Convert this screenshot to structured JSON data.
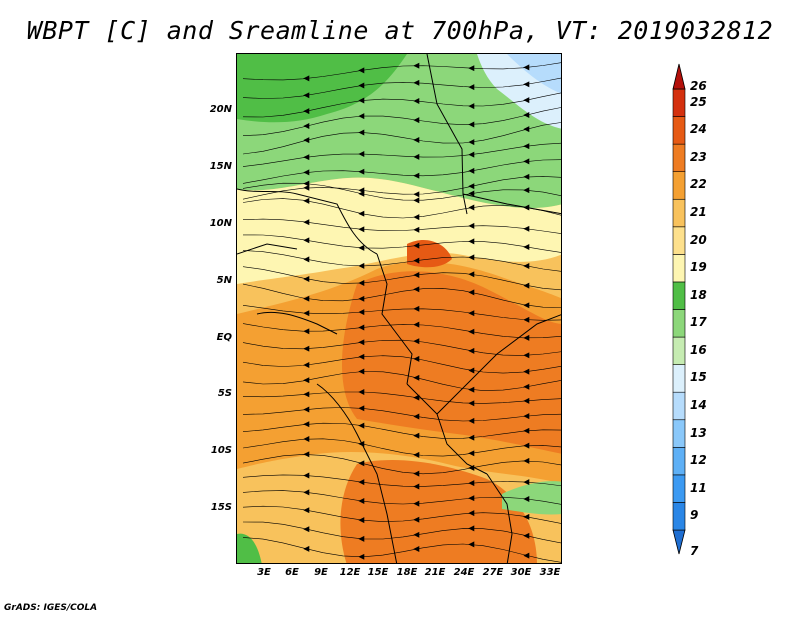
{
  "title": "WBPT [C] and Sreamline at 700hPa, VT: 2019032812",
  "footer": "GrADS: IGES/COLA",
  "map": {
    "lat_labels": [
      "20N",
      "15N",
      "10N",
      "5N",
      "EQ",
      "5S",
      "10S",
      "15S"
    ],
    "lon_labels": [
      "3E",
      "6E",
      "9E",
      "12E",
      "15E",
      "18E",
      "21E",
      "24E",
      "27E",
      "30E",
      "33E"
    ]
  },
  "colorbar": {
    "labels": [
      "7",
      "9",
      "11",
      "12",
      "13",
      "14",
      "15",
      "16",
      "17",
      "18",
      "19",
      "20",
      "21",
      "22",
      "23",
      "24",
      "25",
      "26"
    ],
    "colors": [
      "#1e6ed2",
      "#2a86e6",
      "#3c9af2",
      "#5eb0f6",
      "#8ac8fa",
      "#b6dcfc",
      "#dcf0fc",
      "#c6ecb2",
      "#8cd77a",
      "#50be46",
      "#fef6b2",
      "#fde08c",
      "#f8c25c",
      "#f4a032",
      "#ee7c22",
      "#e65a14",
      "#d4300e",
      "#b4100a"
    ]
  }
}
